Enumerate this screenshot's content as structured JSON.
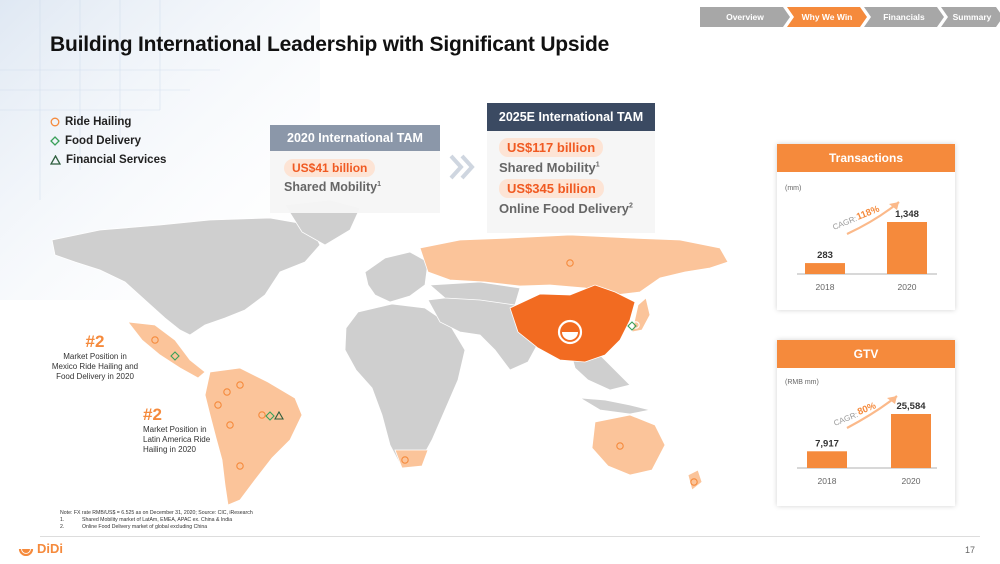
{
  "nav": {
    "items": [
      {
        "label": "Overview",
        "active": false
      },
      {
        "label": "Why We Win",
        "active": true
      },
      {
        "label": "Financials",
        "active": false
      },
      {
        "label": "Summary",
        "active": false
      }
    ]
  },
  "title": "Building International Leadership with Significant Upside",
  "legend": {
    "ride_hailing": "Ride Hailing",
    "food_delivery": "Food Delivery",
    "financial_services": "Financial Services"
  },
  "tam_2020": {
    "header": "2020 International TAM",
    "value": "US$41 billion",
    "label": "Shared Mobility",
    "sup": "1"
  },
  "tam_2025": {
    "header": "2025E International TAM",
    "value_1": "US$117 billion",
    "label_1": "Shared Mobility",
    "sup_1": "1",
    "value_2": "US$345 billion",
    "label_2": "Online Food Delivery",
    "sup_2": "2"
  },
  "market_positions": [
    {
      "rank": "#2",
      "text_lines": [
        "Market Position in",
        "Mexico Ride Hailing and",
        "Food Delivery in 2020"
      ]
    },
    {
      "rank": "#2",
      "text_lines": [
        "Market Position in",
        "Latin America Ride",
        "Hailing in 2020"
      ]
    }
  ],
  "transactions": {
    "header": "Transactions",
    "unit": "(mm)",
    "cagr_label": "CAGR:",
    "cagr_value": "118%"
  },
  "gtv": {
    "header": "GTV",
    "unit": "(RMB mm)",
    "cagr_label": "CAGR:",
    "cagr_value": "80%"
  },
  "chart_data": [
    {
      "type": "bar",
      "title": "Transactions",
      "ylabel": "(mm)",
      "categories": [
        "2018",
        "2020"
      ],
      "values": [
        283,
        1348
      ],
      "value_labels": [
        "283",
        "1,348"
      ]
    },
    {
      "type": "bar",
      "title": "GTV",
      "ylabel": "(RMB mm)",
      "categories": [
        "2018",
        "2020"
      ],
      "values": [
        7917,
        25584
      ],
      "value_labels": [
        "7,917",
        "25,584"
      ]
    }
  ],
  "footnotes": {
    "note": "Note: FX rate RMB/US$ = 6.525 as on December 31, 2020; Source: CIC, iResearch",
    "items": [
      {
        "num": "1.",
        "text": "Shared Mobility market of LatAm, EMEA,  APAC ex. China & India"
      },
      {
        "num": "2.",
        "text": "Online Food Delivery market of global excluding China"
      }
    ]
  },
  "logo_text": "DiDi",
  "page_number": "17",
  "colors": {
    "orange": "#f58a3c",
    "light_orange": "#fbc49a",
    "china_orange": "#f26b21",
    "gray_map": "#cfcfcf",
    "navy": "#3b4a62"
  }
}
